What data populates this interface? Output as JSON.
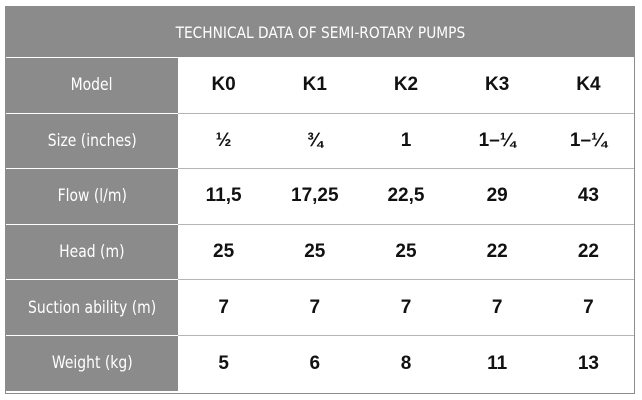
{
  "title": "TECHNICAL DATA OF SEMI-ROTARY PUMPS",
  "rows": [
    {
      "label": "Model",
      "values": [
        "K0",
        "K1",
        "K2",
        "K3",
        "K4"
      ]
    },
    {
      "label": "Size (inches)",
      "values": [
        "½",
        "¾",
        "1",
        "1–¼",
        "1–¼"
      ]
    },
    {
      "label": "Flow (l/m)",
      "values": [
        "11,5",
        "17,25",
        "22,5",
        "29",
        "43"
      ]
    },
    {
      "label": "Head (m)",
      "values": [
        "25",
        "25",
        "25",
        "22",
        "22"
      ]
    },
    {
      "label": "Suction ability (m)",
      "values": [
        "7",
        "7",
        "7",
        "7",
        "7"
      ]
    },
    {
      "label": "Weight (kg)",
      "values": [
        "5",
        "6",
        "8",
        "11",
        "13"
      ]
    }
  ],
  "colors": {
    "header_bg": "#8b8b8b",
    "header_text": "#ffffff",
    "cell_text": "#111111"
  }
}
